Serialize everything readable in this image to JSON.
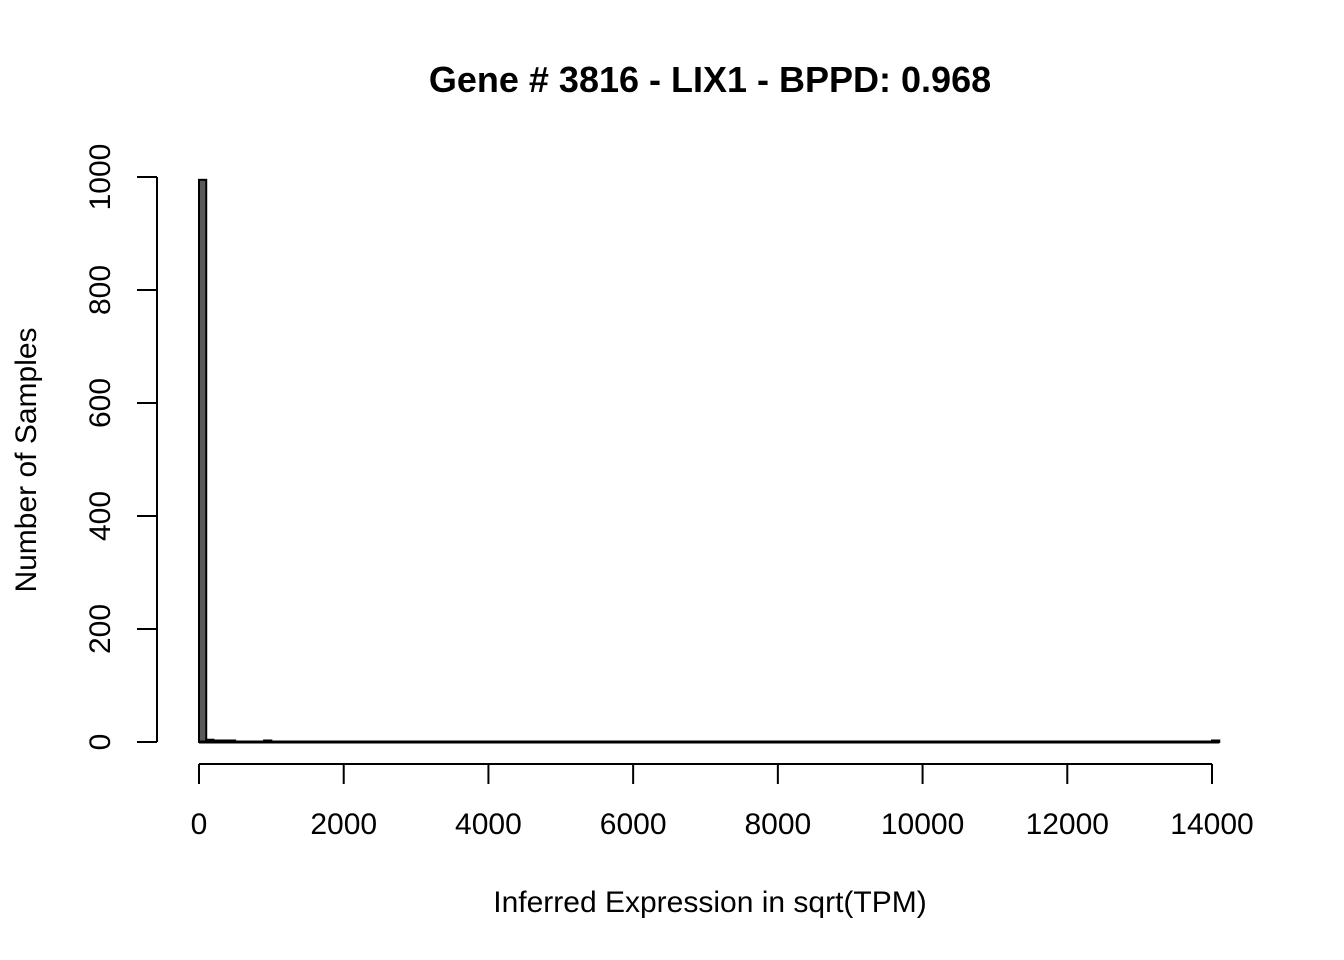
{
  "chart_data": {
    "type": "bar",
    "title": "Gene # 3816 - LIX1 - BPPD: 0.968",
    "xlabel": "Inferred Expression in sqrt(TPM)",
    "ylabel": "Number of Samples",
    "xlim": [
      0,
      14000
    ],
    "ylim": [
      0,
      1000
    ],
    "x_ticks": [
      0,
      2000,
      4000,
      6000,
      8000,
      10000,
      12000,
      14000
    ],
    "y_ticks": [
      0,
      200,
      400,
      600,
      800,
      1000
    ],
    "bin_width": 100,
    "bar_color": "#595959",
    "bar_edge_color": "#000000",
    "bins": [
      {
        "x0": 0,
        "x1": 100,
        "count": 995
      },
      {
        "x0": 100,
        "x1": 200,
        "count": 4
      },
      {
        "x0": 200,
        "x1": 300,
        "count": 2
      },
      {
        "x0": 300,
        "x1": 400,
        "count": 1
      },
      {
        "x0": 400,
        "x1": 500,
        "count": 1
      },
      {
        "x0": 900,
        "x1": 1000,
        "count": 1
      },
      {
        "x0": 14000,
        "x1": 14100,
        "count": 1
      }
    ]
  }
}
